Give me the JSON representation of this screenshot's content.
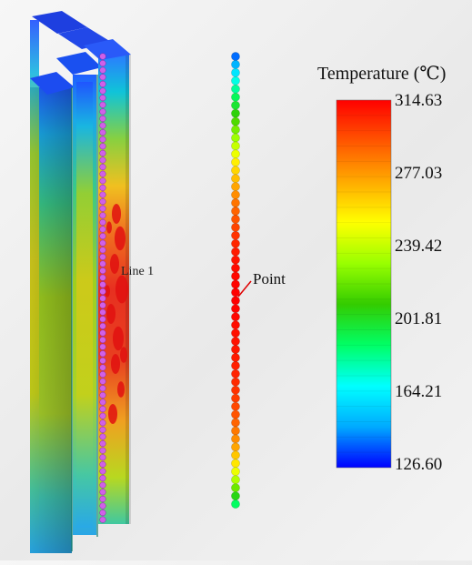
{
  "legend": {
    "title": "Temperature (℃)",
    "max": 314.63,
    "min": 126.6,
    "tick_labels": [
      "314.63",
      "277.03",
      "239.42",
      "201.81",
      "164.21",
      "126.60"
    ],
    "color_stops": [
      "#0000ff",
      "#00aaff",
      "#00ffff",
      "#00ff66",
      "#33cc00",
      "#99ff00",
      "#ffff00",
      "#ffaa00",
      "#ff5500",
      "#ff0000"
    ]
  },
  "annotations": {
    "line_label": "Line 1",
    "point_label": "Point"
  },
  "point_column": {
    "count": 56,
    "temperatures": [
      140,
      150,
      162,
      172,
      182,
      192,
      200,
      208,
      216,
      224,
      232,
      240,
      248,
      256,
      262,
      268,
      274,
      280,
      286,
      290,
      294,
      298,
      302,
      305,
      308,
      310,
      312,
      313,
      314,
      314.6,
      314.6,
      314,
      313,
      312,
      311,
      310,
      309,
      308,
      307,
      306,
      304,
      302,
      300,
      297,
      294,
      290,
      285,
      280,
      274,
      266,
      258,
      248,
      236,
      222,
      206,
      190
    ]
  }
}
